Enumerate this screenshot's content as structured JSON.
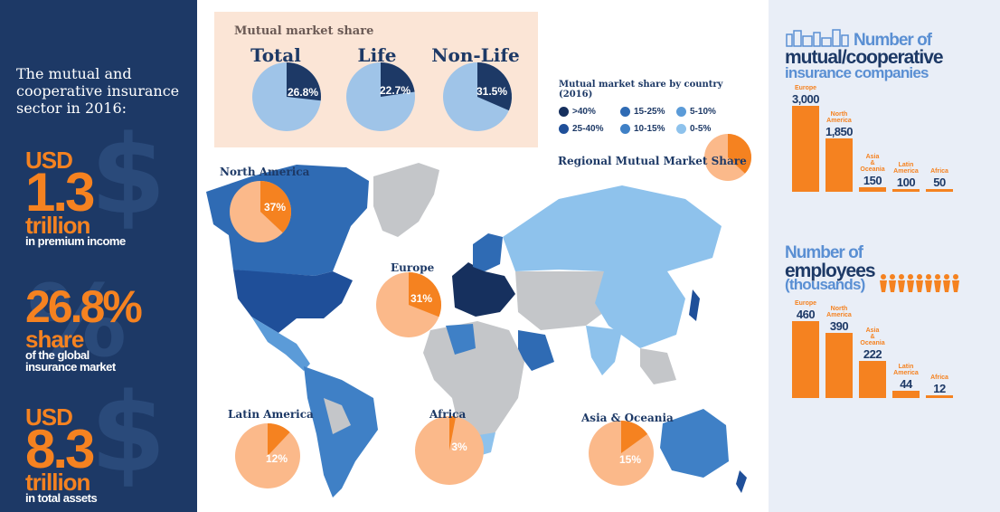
{
  "left_panel": {
    "intro": "The mutual and cooperative insurance sector in 2016:",
    "stats": [
      {
        "pre": "USD",
        "big": "1.3",
        "mid": "trillion",
        "small": "in premium income"
      },
      {
        "big": "26.8%",
        "mid": "share",
        "small1": "of the global",
        "small2": "insurance market"
      },
      {
        "pre": "USD",
        "big": "8.3",
        "mid": "trillion",
        "small": "in total assets"
      }
    ]
  },
  "mutual_share": {
    "title": "Mutual market share",
    "pies": [
      {
        "label": "Total",
        "value": 26.8,
        "text": "26.8%"
      },
      {
        "label": "Life",
        "value": 22.7,
        "text": "22.7%"
      },
      {
        "label": "Non-Life",
        "value": 31.5,
        "text": "31.5%"
      }
    ]
  },
  "legend": {
    "title": "Mutual market share by country (2016)",
    "rows": [
      [
        {
          "label": ">40%",
          "color": "#16305e"
        },
        {
          "label": "15-25%",
          "color": "#2f6bb4"
        },
        {
          "label": "5-10%",
          "color": "#5b9bd8"
        }
      ],
      [
        {
          "label": "25-40%",
          "color": "#1f4f99"
        },
        {
          "label": "10-15%",
          "color": "#3f80c6"
        },
        {
          "label": "0-5%",
          "color": "#8ec2ec"
        }
      ]
    ]
  },
  "regional": {
    "title": "Regional Mutual Market Share",
    "regions": [
      {
        "name": "North America",
        "value": 37,
        "text": "37%"
      },
      {
        "name": "Europe",
        "value": 31,
        "text": "31%"
      },
      {
        "name": "Latin America",
        "value": 12,
        "text": "12%"
      },
      {
        "name": "Africa",
        "value": 3,
        "text": "3%"
      },
      {
        "name": "Asia & Oceania",
        "value": 15,
        "text": "15%"
      }
    ]
  },
  "companies": {
    "title_a": "Number of",
    "title_b": "mutual/cooperative",
    "title_c": "insurance companies",
    "bars": [
      {
        "label": "Europe",
        "value": 3000,
        "text": "3,000"
      },
      {
        "label": "North America",
        "value": 1850,
        "text": "1,850"
      },
      {
        "label": "Asia & Oceania",
        "value": 150,
        "text": "150"
      },
      {
        "label": "Latin America",
        "value": 100,
        "text": "100"
      },
      {
        "label": "Africa",
        "value": 50,
        "text": "50"
      }
    ]
  },
  "employees": {
    "title_a": "Number of",
    "title_b": "employees",
    "title_c": "(thousands)",
    "bars": [
      {
        "label": "Europe",
        "value": 460,
        "text": "460"
      },
      {
        "label": "North America",
        "value": 390,
        "text": "390"
      },
      {
        "label": "Asia & Oceania",
        "value": 222,
        "text": "222"
      },
      {
        "label": "Latin America",
        "value": 44,
        "text": "44"
      },
      {
        "label": "Africa",
        "value": 12,
        "text": "12"
      }
    ]
  },
  "colors": {
    "navy": "#1d3966",
    "orange": "#f58220",
    "peach": "#fbb98a",
    "pie_light": "#9fc4e8",
    "grey": "#c4c6c9"
  }
}
